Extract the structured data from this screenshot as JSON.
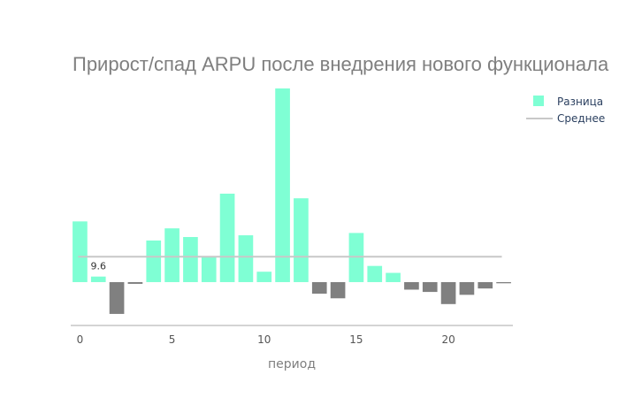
{
  "chart_data": {
    "type": "bar",
    "title": "Прирост/спад ARPU после внедрения нового функционала",
    "xlabel": "период",
    "ylabel": "",
    "x": [
      0,
      1,
      2,
      3,
      4,
      5,
      6,
      7,
      8,
      9,
      10,
      11,
      12,
      13,
      14,
      15,
      16,
      17,
      18,
      19,
      20,
      21,
      22,
      23
    ],
    "series": [
      {
        "name": "Разница",
        "values": [
          105,
          9.6,
          -55,
          -3,
          72,
          93,
          78,
          44,
          153,
          81,
          18,
          335,
          145,
          -20,
          -28,
          85,
          28,
          16,
          -13,
          -17,
          -38,
          -22,
          -11,
          -2
        ]
      },
      {
        "name": "Среднее",
        "type": "line",
        "value": 44
      }
    ],
    "annotations": [
      {
        "x": 1,
        "text": "9.6"
      }
    ],
    "xlim": [
      -0.5,
      23.5
    ],
    "ylim": [
      -75,
      335
    ],
    "xticks": [
      0,
      5,
      10,
      15,
      20
    ],
    "grid": false,
    "legend": "top-right",
    "colors": {
      "positive": "#7fffd4",
      "negative": "#808080",
      "mean_line": "#c8c8c8",
      "title": "#7f7f7f",
      "axis_line": "#aaaaaa"
    }
  }
}
